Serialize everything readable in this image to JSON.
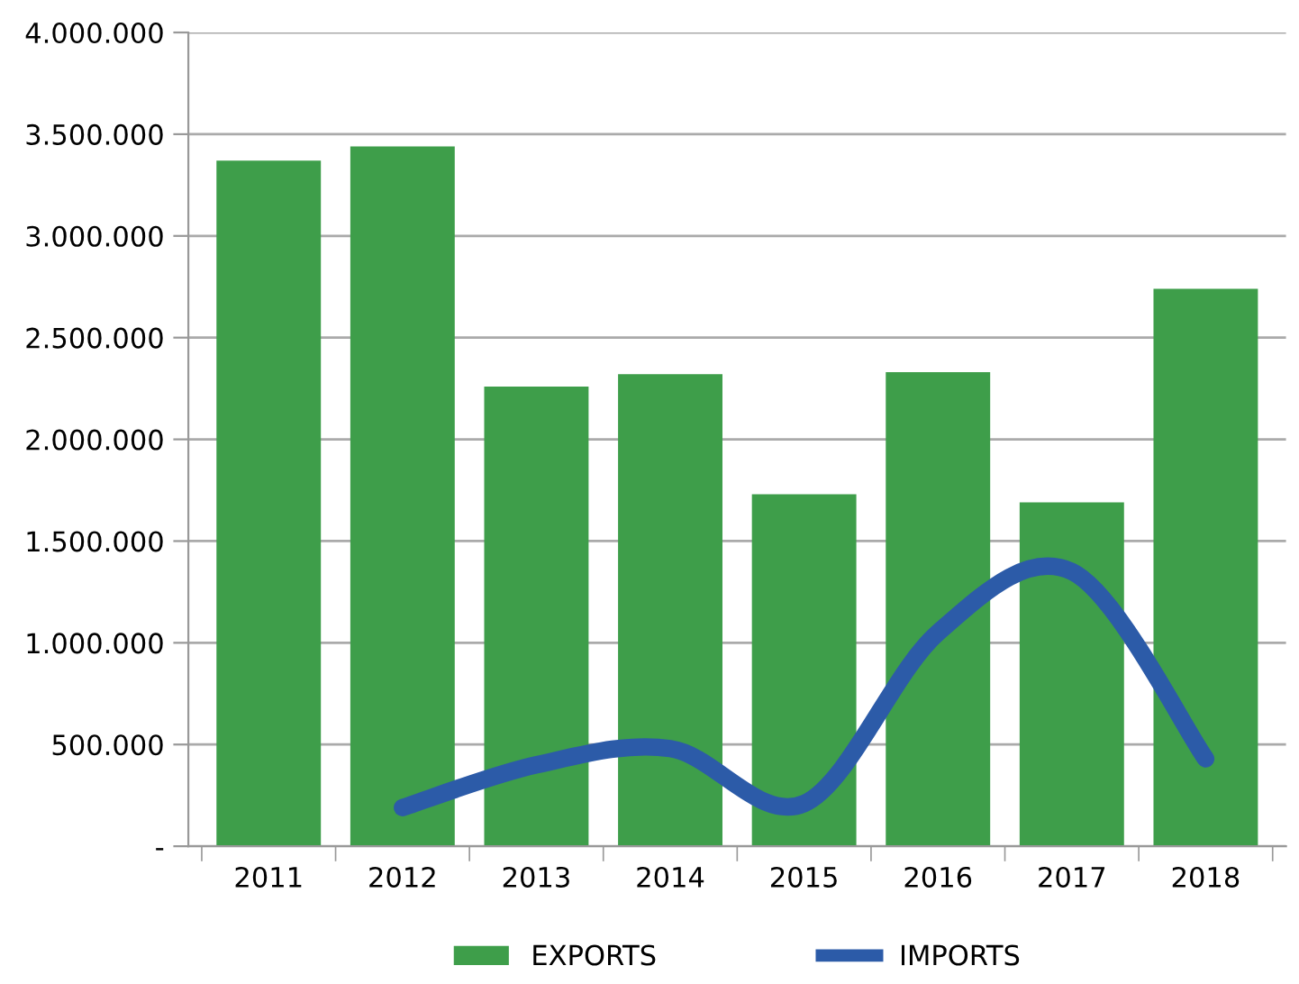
{
  "chart_data": {
    "type": "bar",
    "categories": [
      "2011",
      "2012",
      "2013",
      "2014",
      "2015",
      "2016",
      "2017",
      "2018"
    ],
    "series": [
      {
        "name": "EXPORTS",
        "color": "#3e9e4a",
        "values": [
          3370000,
          3440000,
          2260000,
          2320000,
          1730000,
          2330000,
          1690000,
          2740000
        ]
      },
      {
        "name": "IMPORTS",
        "type": "line",
        "color": "#2c5ba8",
        "values": [
          null,
          190000,
          400000,
          480000,
          210000,
          1050000,
          1350000,
          430000
        ]
      }
    ],
    "ylim": [
      0,
      4000000
    ],
    "yticks": [
      {
        "value": 0,
        "label": "-"
      },
      {
        "value": 500000,
        "label": "500.000"
      },
      {
        "value": 1000000,
        "label": "1.000.000"
      },
      {
        "value": 1500000,
        "label": "1.500.000"
      },
      {
        "value": 2000000,
        "label": "2.000.000"
      },
      {
        "value": 2500000,
        "label": "2.500.000"
      },
      {
        "value": 3000000,
        "label": "3.000.000"
      },
      {
        "value": 3500000,
        "label": "3.500.000"
      },
      {
        "value": 4000000,
        "label": "4.000.000"
      }
    ],
    "grid": "y",
    "legend": "bottom",
    "marker": "none",
    "line_style": "solid"
  }
}
